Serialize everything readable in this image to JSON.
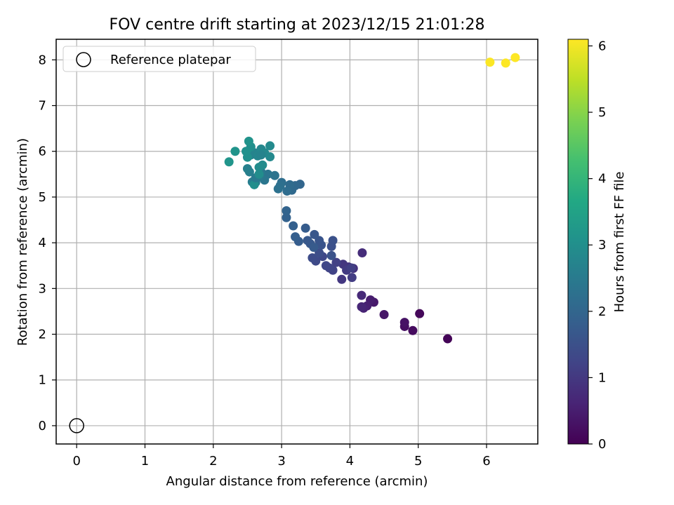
{
  "chart_data": {
    "type": "scatter",
    "title": "FOV centre drift starting at 2023/12/15 21:01:28",
    "xlabel": "Angular distance from reference (arcmin)",
    "ylabel": "Rotation from reference (arcmin)",
    "xlim": [
      -0.3,
      6.75
    ],
    "ylim": [
      -0.4,
      8.45
    ],
    "xticks": [
      0,
      1,
      2,
      3,
      4,
      5,
      6
    ],
    "yticks": [
      0,
      1,
      2,
      3,
      4,
      5,
      6,
      7,
      8
    ],
    "grid": true,
    "legend": {
      "placement": "top-left",
      "entries": [
        "Reference platepar"
      ]
    },
    "reference_point": {
      "x": 0,
      "y": 0
    },
    "colorbar": {
      "label": "Hours from first FF file",
      "range": [
        0,
        6.1
      ],
      "ticks": [
        0,
        1,
        2,
        3,
        4,
        5,
        6
      ],
      "colormap": "viridis"
    },
    "series": [
      {
        "x": [
          5.43,
          5.02,
          4.92,
          4.8,
          4.8,
          4.5,
          4.35,
          4.3,
          4.25,
          4.2,
          4.17,
          4.17,
          4.18,
          4.05,
          3.98,
          3.9,
          3.88,
          3.95,
          4.03,
          4.02,
          3.8,
          3.75,
          3.7,
          3.65,
          3.6,
          3.5,
          3.45,
          3.55,
          3.73,
          3.75,
          3.73,
          3.58,
          3.55,
          3.48,
          3.42,
          3.38,
          3.47,
          3.35,
          3.25,
          3.2,
          3.17,
          3.07,
          3.07,
          3.27,
          3.2,
          3.15,
          3.12,
          3.08,
          3.0,
          2.98,
          2.95,
          2.9,
          2.8,
          2.75,
          2.7,
          2.68,
          2.62,
          2.57,
          2.53,
          2.5,
          2.55,
          2.6,
          2.65,
          2.7,
          2.75,
          2.83,
          2.72,
          2.67,
          2.6,
          2.55,
          2.5,
          2.48,
          2.52,
          2.32,
          2.23,
          2.62,
          2.7,
          2.83,
          2.67,
          6.05,
          6.28,
          6.42
        ],
        "y": [
          1.9,
          2.45,
          2.08,
          2.17,
          2.26,
          2.43,
          2.7,
          2.75,
          2.62,
          2.57,
          2.6,
          2.85,
          3.78,
          3.44,
          3.47,
          3.53,
          3.2,
          3.4,
          3.24,
          3.45,
          3.57,
          3.4,
          3.45,
          3.5,
          3.7,
          3.6,
          3.67,
          3.78,
          3.92,
          4.05,
          3.72,
          3.95,
          4.05,
          4.18,
          3.98,
          4.05,
          3.9,
          4.32,
          4.03,
          4.13,
          4.37,
          4.55,
          4.7,
          5.28,
          5.25,
          5.15,
          5.27,
          5.13,
          5.32,
          5.25,
          5.18,
          5.47,
          5.5,
          5.37,
          5.55,
          5.45,
          5.32,
          5.33,
          5.55,
          5.62,
          5.92,
          5.97,
          5.9,
          6.05,
          5.97,
          6.12,
          5.7,
          5.65,
          5.27,
          6.1,
          5.87,
          6.0,
          6.22,
          6.0,
          5.77,
          5.42,
          5.92,
          5.88,
          5.5,
          7.95,
          7.93,
          8.05
        ],
        "hours": [
          0.05,
          0.12,
          0.18,
          0.24,
          0.3,
          0.36,
          0.42,
          0.48,
          0.54,
          0.6,
          0.66,
          0.72,
          0.78,
          0.85,
          0.9,
          0.95,
          1.0,
          1.04,
          1.08,
          1.12,
          1.16,
          1.2,
          1.24,
          1.28,
          1.32,
          1.36,
          1.4,
          1.44,
          1.48,
          1.52,
          1.55,
          1.58,
          1.61,
          1.64,
          1.67,
          1.7,
          1.73,
          1.76,
          1.79,
          1.82,
          1.86,
          1.9,
          1.95,
          2.0,
          2.04,
          2.08,
          2.12,
          2.16,
          2.2,
          2.24,
          2.28,
          2.32,
          2.36,
          2.4,
          2.44,
          2.48,
          2.52,
          2.56,
          2.6,
          2.64,
          2.68,
          2.72,
          2.76,
          2.8,
          2.84,
          2.88,
          2.91,
          2.94,
          2.97,
          3.0,
          3.03,
          3.06,
          3.09,
          3.12,
          3.15,
          2.5,
          2.7,
          2.85,
          2.95,
          6.08,
          6.09,
          6.1
        ]
      }
    ]
  }
}
